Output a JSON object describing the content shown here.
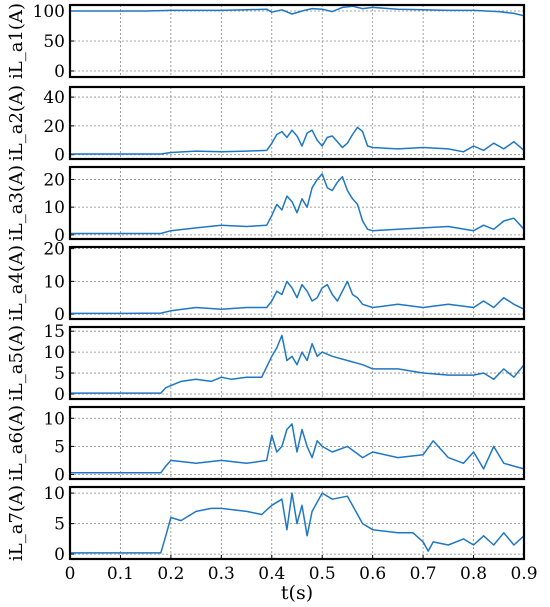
{
  "chart_data": {
    "type": "line",
    "xlabel": "t(s)",
    "xlim": [
      0,
      0.9
    ],
    "x_ticks": [
      "0",
      "0.1",
      "0.2",
      "0.3",
      "0.4",
      "0.5",
      "0.6",
      "0.7",
      "0.8",
      "0.9"
    ],
    "line_color": "#1f77c4",
    "grid": true,
    "panels": [
      {
        "ylabel": "iL_a1(A)",
        "ylim": [
          -10,
          110
        ],
        "y_ticks": [
          0,
          50,
          100
        ],
        "x": [
          0,
          0.05,
          0.1,
          0.15,
          0.2,
          0.25,
          0.3,
          0.35,
          0.39,
          0.4,
          0.42,
          0.44,
          0.46,
          0.48,
          0.5,
          0.52,
          0.54,
          0.56,
          0.58,
          0.6,
          0.65,
          0.7,
          0.75,
          0.8,
          0.85,
          0.88,
          0.9
        ],
        "y": [
          100,
          100,
          100,
          100,
          101,
          101,
          101,
          102,
          103,
          98,
          102,
          95,
          100,
          104,
          103,
          99,
          106,
          108,
          104,
          106,
          103,
          102,
          101,
          101,
          99,
          96,
          92
        ]
      },
      {
        "ylabel": "iL_a2(A)",
        "ylim": [
          -3,
          47
        ],
        "y_ticks": [
          0,
          20,
          40
        ],
        "x": [
          0,
          0.1,
          0.18,
          0.2,
          0.25,
          0.3,
          0.35,
          0.39,
          0.4,
          0.41,
          0.42,
          0.43,
          0.44,
          0.45,
          0.46,
          0.47,
          0.48,
          0.49,
          0.5,
          0.51,
          0.52,
          0.53,
          0.54,
          0.55,
          0.56,
          0.57,
          0.58,
          0.59,
          0.6,
          0.65,
          0.7,
          0.75,
          0.78,
          0.8,
          0.82,
          0.84,
          0.86,
          0.88,
          0.9
        ],
        "y": [
          0.5,
          0.5,
          0.5,
          1.5,
          2.5,
          2,
          2.5,
          3,
          8,
          14,
          16,
          12,
          17,
          13,
          6,
          15,
          17,
          10,
          6,
          12,
          13,
          9,
          5,
          8,
          14,
          19,
          16,
          6,
          5,
          4,
          5,
          4,
          2,
          6,
          3,
          8,
          4,
          9,
          3
        ]
      },
      {
        "ylabel": "iL_a3(A)",
        "ylim": [
          -1.5,
          24.5
        ],
        "y_ticks": [
          0,
          10,
          20
        ],
        "x": [
          0,
          0.1,
          0.18,
          0.2,
          0.25,
          0.3,
          0.35,
          0.39,
          0.4,
          0.41,
          0.42,
          0.43,
          0.44,
          0.45,
          0.46,
          0.47,
          0.48,
          0.49,
          0.5,
          0.51,
          0.52,
          0.53,
          0.54,
          0.55,
          0.56,
          0.57,
          0.58,
          0.59,
          0.6,
          0.65,
          0.7,
          0.75,
          0.8,
          0.82,
          0.84,
          0.86,
          0.88,
          0.9
        ],
        "y": [
          0.5,
          0.5,
          0.5,
          1.5,
          2.5,
          3.5,
          3,
          3.5,
          7,
          11,
          9,
          14,
          12,
          8,
          13,
          10,
          17,
          20,
          22,
          17,
          16,
          19,
          21,
          16,
          13,
          11,
          5,
          2,
          1.5,
          2,
          2.5,
          3,
          1.5,
          3.5,
          2,
          5,
          6,
          2
        ]
      },
      {
        "ylabel": "iL_a4(A)",
        "ylim": [
          -1.5,
          20.5
        ],
        "y_ticks": [
          0,
          10,
          20
        ],
        "x": [
          0,
          0.1,
          0.18,
          0.2,
          0.25,
          0.3,
          0.35,
          0.39,
          0.4,
          0.41,
          0.42,
          0.43,
          0.44,
          0.45,
          0.46,
          0.47,
          0.48,
          0.49,
          0.5,
          0.51,
          0.52,
          0.53,
          0.54,
          0.55,
          0.56,
          0.57,
          0.58,
          0.6,
          0.65,
          0.7,
          0.75,
          0.8,
          0.82,
          0.84,
          0.86,
          0.88,
          0.9
        ],
        "y": [
          0.2,
          0.2,
          0.3,
          1,
          2,
          1.5,
          2,
          2,
          4,
          7,
          6,
          10,
          8,
          5,
          9,
          7,
          4,
          5,
          8,
          9,
          6,
          4,
          7,
          10,
          6,
          5,
          3,
          2,
          3,
          2,
          3,
          2,
          4,
          2,
          5,
          3,
          1.5
        ]
      },
      {
        "ylabel": "iL_a5(A)",
        "ylim": [
          -1.2,
          16
        ],
        "y_ticks": [
          0,
          5,
          10,
          15
        ],
        "x": [
          0,
          0.1,
          0.18,
          0.19,
          0.2,
          0.22,
          0.25,
          0.28,
          0.3,
          0.32,
          0.35,
          0.38,
          0.4,
          0.41,
          0.42,
          0.43,
          0.44,
          0.45,
          0.46,
          0.47,
          0.48,
          0.49,
          0.5,
          0.52,
          0.55,
          0.58,
          0.6,
          0.65,
          0.7,
          0.75,
          0.8,
          0.82,
          0.84,
          0.86,
          0.88,
          0.9
        ],
        "y": [
          0.2,
          0.2,
          0.2,
          1.5,
          2,
          3,
          3.5,
          3,
          4,
          3.5,
          4,
          4,
          9,
          11,
          14,
          8,
          9,
          7,
          10,
          8,
          12,
          9,
          10,
          9,
          8,
          7,
          6,
          6,
          5,
          4.5,
          4.5,
          5,
          3.5,
          6,
          4,
          7
        ]
      },
      {
        "ylabel": "iL_a6(A)",
        "ylim": [
          -0.8,
          12
        ],
        "y_ticks": [
          0,
          5,
          10
        ],
        "x": [
          0,
          0.1,
          0.18,
          0.19,
          0.2,
          0.25,
          0.3,
          0.35,
          0.39,
          0.4,
          0.41,
          0.42,
          0.43,
          0.44,
          0.45,
          0.46,
          0.47,
          0.48,
          0.49,
          0.5,
          0.52,
          0.55,
          0.58,
          0.6,
          0.65,
          0.7,
          0.72,
          0.75,
          0.78,
          0.8,
          0.82,
          0.84,
          0.86,
          0.88,
          0.9
        ],
        "y": [
          0.3,
          0.3,
          0.3,
          1.5,
          2.5,
          2,
          2.5,
          2,
          2.5,
          7,
          4,
          5,
          8,
          9,
          4,
          8,
          5,
          3,
          6,
          5,
          4,
          5,
          3,
          4,
          3,
          3.5,
          6,
          3,
          2,
          4,
          1,
          5,
          2,
          1.5,
          1
        ]
      },
      {
        "ylabel": "iL_a7(A)",
        "ylim": [
          -0.8,
          11
        ],
        "y_ticks": [
          0,
          5,
          10
        ],
        "x": [
          0,
          0.1,
          0.18,
          0.19,
          0.2,
          0.22,
          0.25,
          0.28,
          0.3,
          0.35,
          0.38,
          0.4,
          0.42,
          0.43,
          0.44,
          0.45,
          0.46,
          0.47,
          0.48,
          0.5,
          0.52,
          0.55,
          0.58,
          0.6,
          0.65,
          0.68,
          0.7,
          0.71,
          0.72,
          0.75,
          0.78,
          0.8,
          0.82,
          0.84,
          0.86,
          0.88,
          0.9
        ],
        "y": [
          0.2,
          0.2,
          0.2,
          3,
          6,
          5.5,
          7,
          7.5,
          7.5,
          7,
          6.5,
          8,
          9,
          4,
          10,
          5,
          8,
          3,
          7,
          10,
          9,
          9.5,
          5,
          4,
          3.5,
          3.5,
          2,
          0.5,
          2,
          1.5,
          2.5,
          1.5,
          3,
          1.5,
          3.5,
          1.5,
          3
        ]
      }
    ]
  }
}
